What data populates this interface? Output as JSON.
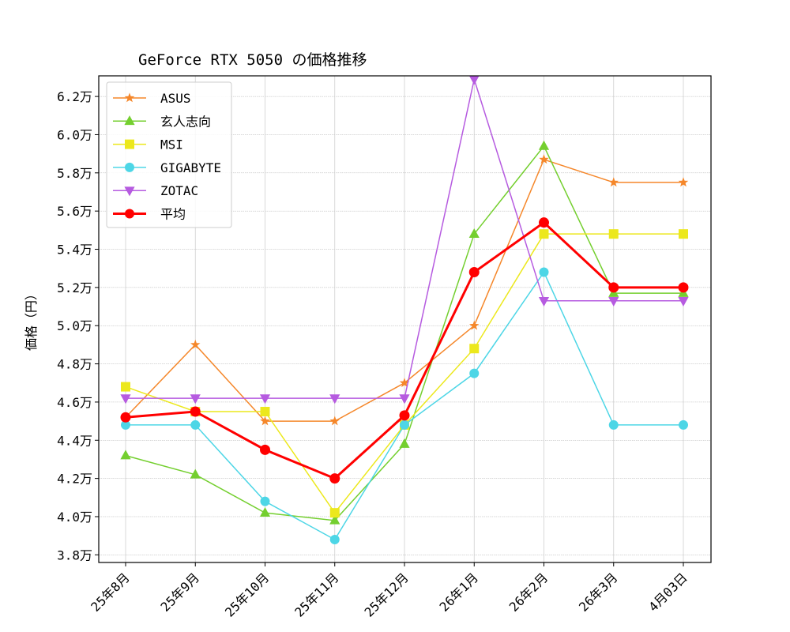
{
  "chart_data": {
    "type": "line",
    "title": "GeForce RTX 5050 の価格推移",
    "xlabel": "",
    "ylabel": "価格（円）",
    "categories": [
      "25年8月",
      "25年9月",
      "25年10月",
      "25年11月",
      "25年12月",
      "26年1月",
      "26年2月",
      "26年3月",
      "4月03日"
    ],
    "ylim": [
      37600,
      63080
    ],
    "yticks": [
      38000,
      40000,
      42000,
      44000,
      46000,
      48000,
      50000,
      52000,
      54000,
      56000,
      58000,
      60000,
      62000
    ],
    "ytick_labels": [
      "3.8万",
      "4.0万",
      "4.2万",
      "4.4万",
      "4.6万",
      "4.8万",
      "5.0万",
      "5.2万",
      "5.4万",
      "5.6万",
      "5.8万",
      "6.0万",
      "6.2万"
    ],
    "grid": true,
    "legend_position": "top-left",
    "series": [
      {
        "name": "ASUS",
        "color": "#f5872a",
        "marker": "star",
        "values": [
          45200,
          49000,
          45000,
          45000,
          47000,
          50000,
          58700,
          57500,
          57500
        ]
      },
      {
        "name": "玄人志向",
        "color": "#74cf2f",
        "marker": "triangle-up",
        "values": [
          43200,
          42200,
          40200,
          39800,
          43800,
          54800,
          59400,
          51700,
          51700
        ]
      },
      {
        "name": "MSI",
        "color": "#ece81c",
        "marker": "square",
        "values": [
          46800,
          45500,
          45500,
          40200,
          44800,
          48800,
          54800,
          54800,
          54800
        ]
      },
      {
        "name": "GIGABYTE",
        "color": "#4dd6e6",
        "marker": "circle",
        "values": [
          44800,
          44800,
          40800,
          38800,
          44800,
          47500,
          52800,
          44800,
          44800
        ]
      },
      {
        "name": "ZOTAC",
        "color": "#b65be0",
        "marker": "triangle-down",
        "values": [
          46200,
          46200,
          46200,
          46200,
          46200,
          62900,
          51300,
          51300,
          51300
        ]
      },
      {
        "name": "平均",
        "color": "#ff0000",
        "marker": "circle",
        "bold": true,
        "values": [
          45200,
          45500,
          43500,
          42000,
          45300,
          52800,
          55400,
          52000,
          52000
        ]
      }
    ]
  }
}
